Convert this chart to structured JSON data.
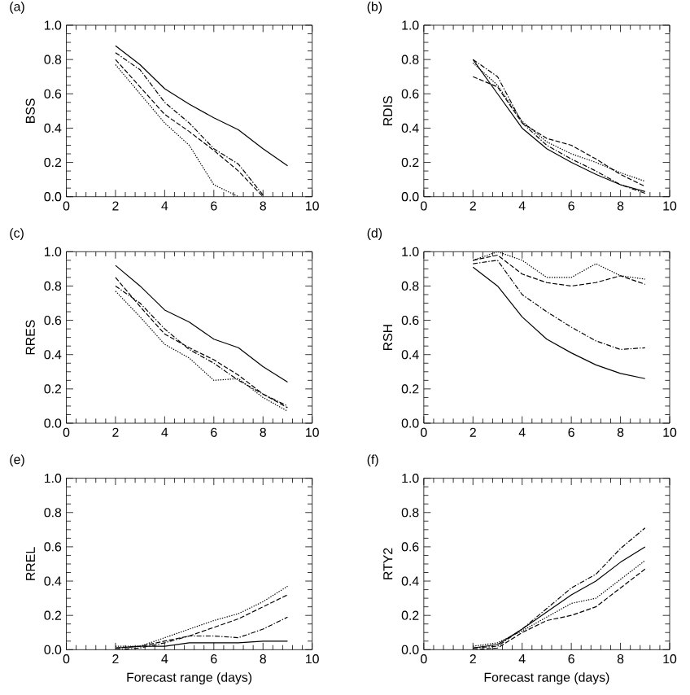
{
  "chart_data": [
    {
      "type": "line",
      "title": "(a)",
      "ylabel": "BSS",
      "x": [
        2,
        3,
        4,
        5,
        6,
        7,
        8,
        9
      ],
      "xlim": [
        0,
        10
      ],
      "ylim": [
        0,
        1
      ],
      "xticks": [
        0,
        2,
        4,
        6,
        8,
        10
      ],
      "yticks": [
        {
          "value": 0,
          "label": "0.0"
        },
        {
          "value": 0.2,
          "label": "0.2"
        },
        {
          "value": 0.4,
          "label": "0.4"
        },
        {
          "value": 0.6,
          "label": "0.6"
        },
        {
          "value": 0.8,
          "label": "0.8"
        },
        {
          "value": 1,
          "label": "1.0"
        }
      ],
      "series": [
        {
          "color": "#000000",
          "line_style": "solid",
          "values": [
            0.88,
            0.77,
            0.63,
            0.54,
            0.46,
            0.39,
            0.28,
            0.18
          ]
        },
        {
          "color": "#000000",
          "line_style": "dashed",
          "values": [
            0.8,
            0.64,
            0.48,
            0.38,
            0.27,
            0.15,
            0.0,
            null
          ]
        },
        {
          "color": "#000000",
          "line_style": "dashdot",
          "values": [
            0.84,
            0.74,
            0.55,
            0.43,
            0.28,
            0.19,
            0.01,
            null
          ]
        },
        {
          "color": "#000000",
          "line_style": "dotted",
          "values": [
            0.77,
            0.6,
            0.43,
            0.3,
            0.07,
            0.0,
            null,
            null
          ]
        }
      ]
    },
    {
      "type": "line",
      "title": "(b)",
      "ylabel": "RDIS",
      "x": [
        2,
        3,
        4,
        5,
        6,
        7,
        8,
        9
      ],
      "xlim": [
        0,
        10
      ],
      "ylim": [
        0,
        1
      ],
      "xticks": [
        0,
        2,
        4,
        6,
        8,
        10
      ],
      "yticks": [
        {
          "value": 0,
          "label": "0.0"
        },
        {
          "value": 0.2,
          "label": "0.2"
        },
        {
          "value": 0.4,
          "label": "0.4"
        },
        {
          "value": 0.6,
          "label": "0.6"
        },
        {
          "value": 0.8,
          "label": "0.8"
        },
        {
          "value": 1,
          "label": "1.0"
        }
      ],
      "series": [
        {
          "color": "#000000",
          "line_style": "solid",
          "values": [
            0.8,
            0.6,
            0.4,
            0.28,
            0.2,
            0.13,
            0.07,
            0.03
          ]
        },
        {
          "color": "#000000",
          "line_style": "dashed",
          "values": [
            0.7,
            0.64,
            0.43,
            0.34,
            0.3,
            0.22,
            0.13,
            0.06
          ]
        },
        {
          "color": "#000000",
          "line_style": "dashdot",
          "values": [
            0.8,
            0.7,
            0.43,
            0.3,
            0.22,
            0.15,
            0.07,
            0.02
          ]
        },
        {
          "color": "#000000",
          "line_style": "dotted",
          "values": [
            0.78,
            0.65,
            0.44,
            0.32,
            0.25,
            0.2,
            0.14,
            0.09
          ]
        }
      ]
    },
    {
      "type": "line",
      "title": "(c)",
      "ylabel": "RRES",
      "x": [
        2,
        3,
        4,
        5,
        6,
        7,
        8,
        9
      ],
      "xlim": [
        0,
        10
      ],
      "ylim": [
        0,
        1
      ],
      "xticks": [
        0,
        2,
        4,
        6,
        8,
        10
      ],
      "yticks": [
        {
          "value": 0,
          "label": "0.0"
        },
        {
          "value": 0.2,
          "label": "0.2"
        },
        {
          "value": 0.4,
          "label": "0.4"
        },
        {
          "value": 0.6,
          "label": "0.6"
        },
        {
          "value": 0.8,
          "label": "0.8"
        },
        {
          "value": 1,
          "label": "1.0"
        }
      ],
      "series": [
        {
          "color": "#000000",
          "line_style": "solid",
          "values": [
            0.92,
            0.8,
            0.66,
            0.59,
            0.49,
            0.44,
            0.33,
            0.24
          ]
        },
        {
          "color": "#000000",
          "line_style": "dashed",
          "values": [
            0.85,
            0.68,
            0.52,
            0.44,
            0.37,
            0.28,
            0.17,
            0.09
          ]
        },
        {
          "color": "#000000",
          "line_style": "dashdot",
          "values": [
            0.8,
            0.7,
            0.55,
            0.43,
            0.35,
            0.25,
            0.17,
            0.1
          ]
        },
        {
          "color": "#000000",
          "line_style": "dotted",
          "values": [
            0.77,
            0.62,
            0.46,
            0.38,
            0.25,
            0.26,
            0.15,
            0.07
          ]
        }
      ]
    },
    {
      "type": "line",
      "title": "(d)",
      "ylabel": "RSH",
      "x": [
        2,
        3,
        4,
        5,
        6,
        7,
        8,
        9
      ],
      "xlim": [
        0,
        10
      ],
      "ylim": [
        0,
        1
      ],
      "xticks": [
        0,
        2,
        4,
        6,
        8,
        10
      ],
      "yticks": [
        {
          "value": 0,
          "label": "0.0"
        },
        {
          "value": 0.2,
          "label": "0.2"
        },
        {
          "value": 0.4,
          "label": "0.4"
        },
        {
          "value": 0.6,
          "label": "0.6"
        },
        {
          "value": 0.8,
          "label": "0.8"
        },
        {
          "value": 1,
          "label": "1.0"
        }
      ],
      "series": [
        {
          "color": "#000000",
          "line_style": "solid",
          "values": [
            0.91,
            0.8,
            0.62,
            0.49,
            0.41,
            0.34,
            0.29,
            0.26
          ]
        },
        {
          "color": "#000000",
          "line_style": "dashed",
          "values": [
            0.95,
            0.98,
            0.87,
            0.82,
            0.8,
            0.82,
            0.86,
            0.81
          ]
        },
        {
          "color": "#000000",
          "line_style": "dashdot",
          "values": [
            0.93,
            0.95,
            0.75,
            0.65,
            0.56,
            0.48,
            0.43,
            0.44
          ]
        },
        {
          "color": "#000000",
          "line_style": "dotted",
          "values": [
            0.95,
            1.0,
            0.95,
            0.85,
            0.85,
            0.93,
            0.86,
            0.84
          ]
        }
      ]
    },
    {
      "type": "line",
      "title": "(e)",
      "ylabel": "RREL",
      "xlabel": "Forecast range (days)",
      "x": [
        2,
        3,
        4,
        5,
        6,
        7,
        8,
        9
      ],
      "xlim": [
        0,
        10
      ],
      "ylim": [
        0,
        1
      ],
      "xticks": [
        0,
        2,
        4,
        6,
        8,
        10
      ],
      "yticks": [
        {
          "value": 0,
          "label": "0.0"
        },
        {
          "value": 0.2,
          "label": "0.2"
        },
        {
          "value": 0.4,
          "label": "0.4"
        },
        {
          "value": 0.6,
          "label": "0.6"
        },
        {
          "value": 0.8,
          "label": "0.8"
        },
        {
          "value": 1,
          "label": "1.0"
        }
      ],
      "series": [
        {
          "color": "#000000",
          "line_style": "solid",
          "values": [
            0.01,
            0.02,
            0.02,
            0.04,
            0.04,
            0.04,
            0.05,
            0.05
          ]
        },
        {
          "color": "#000000",
          "line_style": "dashed",
          "values": [
            0.01,
            0.02,
            0.05,
            0.08,
            0.13,
            0.18,
            0.25,
            0.32
          ]
        },
        {
          "color": "#000000",
          "line_style": "dashdot",
          "values": [
            0.0,
            0.01,
            0.04,
            0.08,
            0.08,
            0.07,
            0.12,
            0.19
          ]
        },
        {
          "color": "#000000",
          "line_style": "dotted",
          "values": [
            0.02,
            0.02,
            0.07,
            0.12,
            0.17,
            0.21,
            0.28,
            0.37
          ]
        }
      ]
    },
    {
      "type": "line",
      "title": "(f)",
      "ylabel": "RTY2",
      "xlabel": "Forecast range (days)",
      "x": [
        2,
        3,
        4,
        5,
        6,
        7,
        8,
        9
      ],
      "xlim": [
        0,
        10
      ],
      "ylim": [
        0,
        1
      ],
      "xticks": [
        0,
        2,
        4,
        6,
        8,
        10
      ],
      "yticks": [
        {
          "value": 0,
          "label": "0.0"
        },
        {
          "value": 0.2,
          "label": "0.2"
        },
        {
          "value": 0.4,
          "label": "0.4"
        },
        {
          "value": 0.6,
          "label": "0.6"
        },
        {
          "value": 0.8,
          "label": "0.8"
        },
        {
          "value": 1,
          "label": "1.0"
        }
      ],
      "series": [
        {
          "color": "#000000",
          "line_style": "solid",
          "values": [
            0.01,
            0.03,
            0.12,
            0.22,
            0.32,
            0.4,
            0.51,
            0.6
          ]
        },
        {
          "color": "#000000",
          "line_style": "dashed",
          "values": [
            0.0,
            0.01,
            0.1,
            0.17,
            0.2,
            0.25,
            0.36,
            0.47
          ]
        },
        {
          "color": "#000000",
          "line_style": "dashdot",
          "values": [
            0.01,
            0.02,
            0.12,
            0.24,
            0.36,
            0.44,
            0.59,
            0.71
          ]
        },
        {
          "color": "#000000",
          "line_style": "dotted",
          "values": [
            0.02,
            0.04,
            0.11,
            0.19,
            0.27,
            0.3,
            0.41,
            0.52
          ]
        }
      ]
    }
  ]
}
